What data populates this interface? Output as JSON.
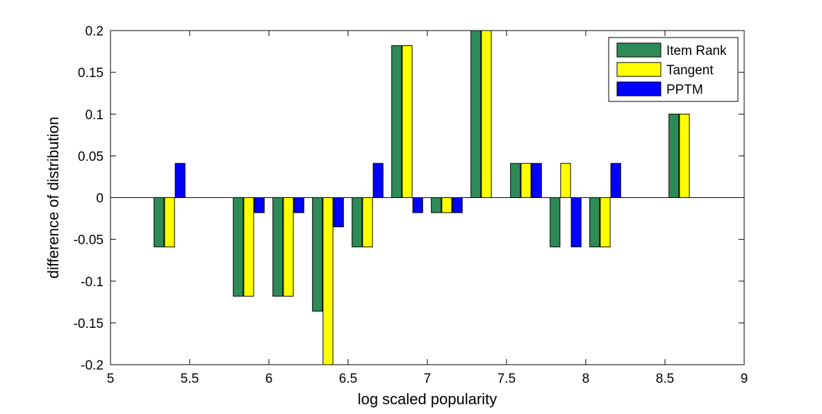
{
  "chart_data": {
    "type": "bar",
    "xlabel": "log scaled popularity",
    "ylabel": "difference of distribution",
    "xlim": [
      5,
      9
    ],
    "ylim": [
      -0.2,
      0.2
    ],
    "xticks": [
      5,
      5.5,
      6,
      6.5,
      7,
      7.5,
      8,
      8.5,
      9
    ],
    "xtick_labels": [
      "5",
      "5.5",
      "6",
      "6.5",
      "7",
      "7.5",
      "8",
      "8.5",
      "9"
    ],
    "yticks": [
      -0.2,
      -0.15,
      -0.1,
      -0.05,
      0,
      0.05,
      0.1,
      0.15,
      0.2
    ],
    "ytick_labels": [
      "-0.2",
      "-0.15",
      "-0.1",
      "-0.05",
      "0",
      "0.05",
      "0.1",
      "0.15",
      "0.2"
    ],
    "x": [
      5.375,
      5.875,
      6.125,
      6.375,
      6.625,
      6.875,
      7.125,
      7.375,
      7.625,
      7.875,
      8.125,
      8.625
    ],
    "legend_position": "top-right",
    "grid": false,
    "series": [
      {
        "name": "Item Rank",
        "color": "#2e8b57",
        "values": [
          -0.059,
          -0.118,
          -0.118,
          -0.136,
          -0.059,
          0.182,
          -0.018,
          0.2,
          0.041,
          -0.059,
          -0.059,
          0.1
        ]
      },
      {
        "name": "Tangent",
        "color": "#ffff00",
        "values": [
          -0.059,
          -0.118,
          -0.118,
          -0.2,
          -0.059,
          0.182,
          -0.018,
          0.2,
          0.041,
          0.041,
          -0.059,
          0.1
        ]
      },
      {
        "name": "PPTM",
        "color": "#0000ff",
        "values": [
          0.041,
          -0.018,
          -0.018,
          -0.035,
          0.041,
          -0.018,
          -0.018,
          0,
          0.041,
          -0.059,
          0.041,
          0
        ]
      }
    ]
  }
}
